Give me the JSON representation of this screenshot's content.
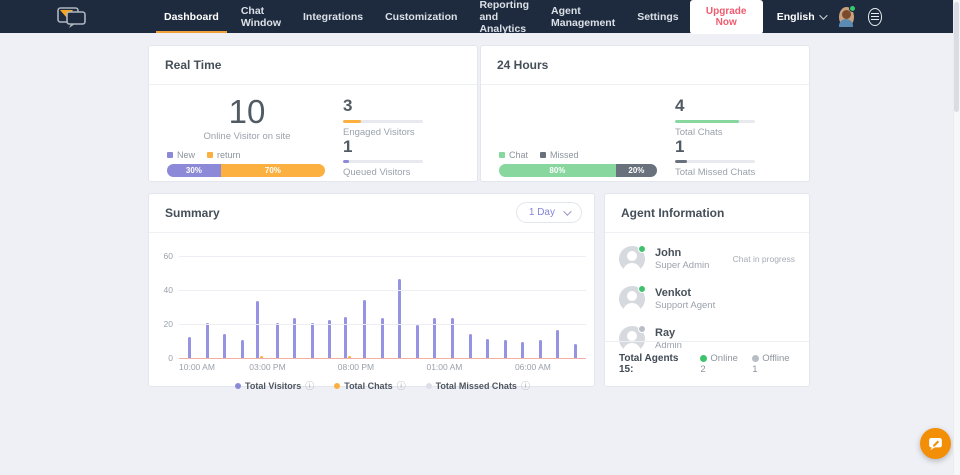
{
  "nav": {
    "items": [
      {
        "label": "Dashboard",
        "active": true
      },
      {
        "label": "Chat Window",
        "active": false
      },
      {
        "label": "Integrations",
        "active": false
      },
      {
        "label": "Customization",
        "active": false
      },
      {
        "label": "Reporting and Analytics",
        "active": false
      },
      {
        "label": "Agent Management",
        "active": false
      },
      {
        "label": "Settings",
        "active": false
      }
    ],
    "upgrade_label": "Upgrade Now",
    "language": "English"
  },
  "realtime": {
    "title": "Real Time",
    "online_count": "10",
    "online_label": "Online Visitor on site",
    "legend": [
      {
        "label": "New",
        "color": "#8c8ad8"
      },
      {
        "label": "return",
        "color": "#fbb040"
      }
    ],
    "bar_segments": [
      {
        "pct_label": "30%",
        "value": 30,
        "color": "#8c8ad8"
      },
      {
        "pct_label": "70%",
        "value": 70,
        "color": "#fbb040"
      }
    ],
    "stats": [
      {
        "value": "3",
        "label": "Engaged Visitors",
        "color": "#fbb040",
        "fill_pct": 22
      },
      {
        "value": "1",
        "label": "Queued Visitors",
        "color": "#8c8ad8",
        "fill_pct": 8
      }
    ]
  },
  "day24": {
    "title": "24 Hours",
    "legend": [
      {
        "label": "Chat",
        "color": "#87d79e"
      },
      {
        "label": "Missed",
        "color": "#68717c"
      }
    ],
    "bar_segments": [
      {
        "pct_label": "80%",
        "value": 80,
        "color": "#87d79e"
      },
      {
        "pct_label": "20%",
        "value": 20,
        "color": "#68717c"
      }
    ],
    "stats": [
      {
        "value": "4",
        "label": "Total Chats",
        "color": "#87d79e",
        "fill_pct": 80
      },
      {
        "value": "1",
        "label": "Total Missed Chats",
        "color": "#68717c",
        "fill_pct": 15
      }
    ]
  },
  "summary": {
    "title": "Summary",
    "range_label": "1 Day"
  },
  "chart_data": {
    "type": "bar",
    "title": "Summary",
    "x_tick_labels": [
      "10:00 AM",
      "03:00 PM",
      "08:00 PM",
      "01:00 AM",
      "06:00 AM"
    ],
    "x_slot_count": 23,
    "ylim": [
      0,
      60
    ],
    "yticks": [
      0,
      20,
      40,
      60
    ],
    "grid": true,
    "legend_position": "bottom",
    "series": [
      {
        "name": "Total Visitors",
        "color": "#9593e2",
        "legend_color": "#8c8ad8",
        "values": [
          13,
          21,
          15,
          11,
          34,
          21,
          24,
          21,
          23,
          25,
          35,
          24,
          47,
          20,
          24,
          24,
          15,
          12,
          11,
          10,
          11,
          17,
          9
        ]
      },
      {
        "name": "Total Chats",
        "color": "#fbb040",
        "legend_color": "#fbb040",
        "values": [
          0,
          0,
          0,
          0,
          2,
          0,
          0,
          0,
          0,
          2,
          0,
          0,
          0,
          0,
          0,
          0,
          0,
          0,
          0,
          0,
          0,
          0,
          0
        ]
      },
      {
        "name": "Total Missed Chats",
        "color": "#f0b0a8",
        "legend_color": "#dcdfe8",
        "values": [
          0,
          0,
          0,
          0,
          0,
          0,
          0,
          0,
          0,
          0,
          0,
          0,
          0,
          0,
          0,
          0,
          0,
          0,
          0,
          0,
          0,
          0,
          0
        ]
      }
    ]
  },
  "agents": {
    "title": "Agent Information",
    "list": [
      {
        "name": "John",
        "role": "Super Admin",
        "status": "online",
        "note": "Chat in progress"
      },
      {
        "name": "Venkot",
        "role": "Support Agent",
        "status": "online",
        "note": ""
      },
      {
        "name": "Ray",
        "role": "Admin",
        "status": "offline",
        "note": ""
      }
    ],
    "footer": {
      "total_label": "Total Agents 15:",
      "online_label": "Online 2",
      "offline_label": "Offline 1"
    },
    "status_colors": {
      "online": "#3ec26b",
      "offline": "#b9bec6"
    }
  }
}
